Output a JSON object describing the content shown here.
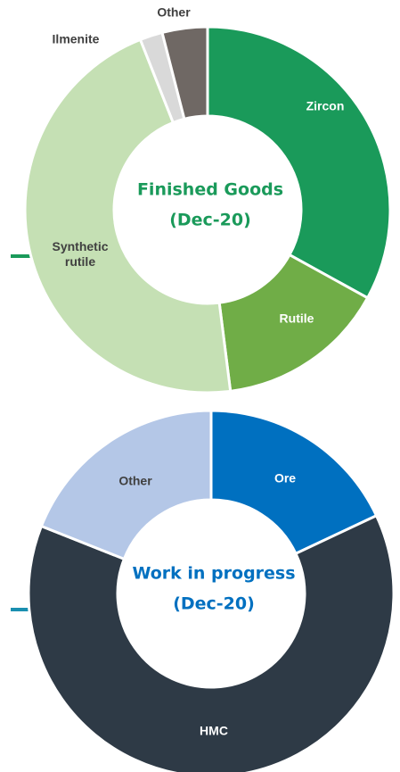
{
  "chart_data": [
    {
      "type": "donut",
      "title": "Finished Goods",
      "subtitle": "(Dec-20)",
      "title_color": "#1a9a5a",
      "categories": [
        "Zircon",
        "Rutile",
        "Synthetic rutile",
        "Ilmenite",
        "Other"
      ],
      "values": [
        33,
        15,
        46,
        2,
        4
      ],
      "colors": [
        "#1a9a5a",
        "#70ad47",
        "#c5e0b4",
        "#d9d9d9",
        "#6f6864"
      ]
    },
    {
      "type": "donut",
      "title": "Work in progress",
      "subtitle": "(Dec-20)",
      "title_color": "#0070c0",
      "categories": [
        "Ore",
        "HMC",
        "Other"
      ],
      "values": [
        18,
        63,
        19
      ],
      "colors": [
        "#0070c0",
        "#2e3a46",
        "#b4c7e7"
      ]
    }
  ]
}
